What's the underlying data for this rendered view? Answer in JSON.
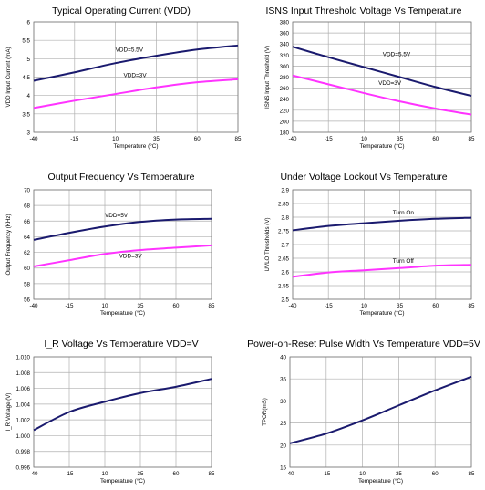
{
  "colors": {
    "navy": "#1a1a6e",
    "magenta": "#ff33ff",
    "grid": "#b0b0b0"
  },
  "chart_data": [
    {
      "type": "line",
      "title": "Typical Operating Current (VDD)",
      "xlabel": "Temperature (°C)",
      "ylabel": "VDD Input Current (mA)",
      "x": [
        -40,
        -15,
        10,
        35,
        60,
        85
      ],
      "ylim": [
        3,
        6
      ],
      "yticks": [
        3,
        3.5,
        4,
        4.5,
        5,
        5.5,
        6
      ],
      "ytick_labels": [
        "3",
        "3.5",
        "4",
        "4.5",
        "5",
        "5.5",
        "6"
      ],
      "grid": true,
      "series": [
        {
          "name": "VDD=5.5V",
          "values": [
            4.4,
            4.63,
            4.88,
            5.08,
            5.25,
            5.36
          ],
          "color": "#1a1a6e"
        },
        {
          "name": "VDD=3V",
          "values": [
            3.66,
            3.86,
            4.04,
            4.22,
            4.36,
            4.44
          ],
          "color": "#ff33ff"
        }
      ],
      "annotations": [
        {
          "text": "VDD=5.5V",
          "x": 10,
          "y": 5.2
        },
        {
          "text": "VDD=3V",
          "x": 15,
          "y": 4.5
        }
      ]
    },
    {
      "type": "line",
      "title": "ISNS Input Threshold Voltage Vs Temperature",
      "xlabel": "Temperature (°C)",
      "ylabel": "ISNS Input Threshold (V)",
      "x": [
        -40,
        -15,
        10,
        35,
        60,
        85
      ],
      "ylim": [
        180,
        380
      ],
      "yticks": [
        180,
        200,
        220,
        240,
        260,
        280,
        300,
        320,
        340,
        360,
        380
      ],
      "ytick_labels": [
        "180",
        "200",
        "220",
        "240",
        "260",
        "280",
        "300",
        "320",
        "340",
        "360",
        "380"
      ],
      "grid": true,
      "series": [
        {
          "name": "VDD=5.5V",
          "values": [
            335,
            316,
            298,
            280,
            262,
            246
          ],
          "color": "#1a1a6e"
        },
        {
          "name": "VDD=3V",
          "values": [
            283,
            267,
            251,
            236,
            223,
            212
          ],
          "color": "#ff33ff"
        }
      ],
      "annotations": [
        {
          "text": "VDD=5.5V",
          "x": 23,
          "y": 318
        },
        {
          "text": "VDD=3V",
          "x": 20,
          "y": 266
        }
      ]
    },
    {
      "type": "line",
      "title": "Output Frequency Vs Temperature",
      "xlabel": "Temperature (°C)",
      "ylabel": "Output Frequency (KHz)",
      "x": [
        -40,
        -15,
        10,
        35,
        60,
        85
      ],
      "ylim": [
        56,
        70
      ],
      "yticks": [
        56,
        58,
        60,
        62,
        64,
        66,
        68,
        70
      ],
      "ytick_labels": [
        "56",
        "58",
        "60",
        "62",
        "64",
        "66",
        "68",
        "70"
      ],
      "grid": true,
      "series": [
        {
          "name": "VDD=5V",
          "values": [
            63.6,
            64.5,
            65.3,
            65.9,
            66.2,
            66.3
          ],
          "color": "#1a1a6e"
        },
        {
          "name": "VDD=3V",
          "values": [
            60.2,
            61.0,
            61.8,
            62.3,
            62.6,
            62.9
          ],
          "color": "#ff33ff"
        }
      ],
      "annotations": [
        {
          "text": "VDD=5V",
          "x": 10,
          "y": 66.5
        },
        {
          "text": "VDD=3V",
          "x": 20,
          "y": 61.3
        }
      ]
    },
    {
      "type": "line",
      "title": "Under Voltage Lockout Vs Temperature",
      "xlabel": "Temperature (°C)",
      "ylabel": "UVLO Thresholds (V)",
      "x": [
        -40,
        -15,
        10,
        35,
        60,
        85
      ],
      "ylim": [
        2.5,
        2.9
      ],
      "yticks": [
        2.5,
        2.55,
        2.6,
        2.65,
        2.7,
        2.75,
        2.8,
        2.85,
        2.9
      ],
      "ytick_labels": [
        "2.5",
        "2.55",
        "2.6",
        "2.65",
        "2.7",
        "2.75",
        "2.8",
        "2.85",
        "2.9"
      ],
      "grid": true,
      "series": [
        {
          "name": "Turn On",
          "values": [
            2.752,
            2.768,
            2.778,
            2.787,
            2.794,
            2.798
          ],
          "color": "#1a1a6e"
        },
        {
          "name": "Turn Off",
          "values": [
            2.582,
            2.598,
            2.606,
            2.614,
            2.623,
            2.626
          ],
          "color": "#ff33ff"
        }
      ],
      "annotations": [
        {
          "text": "Turn On",
          "x": 30,
          "y": 2.81
        },
        {
          "text": "Turn Off",
          "x": 30,
          "y": 2.634
        }
      ]
    },
    {
      "type": "line",
      "title": "I_R Voltage Vs Temperature VDD=V",
      "xlabel": "Temperature (°C)",
      "ylabel": "I_R Voltage (V)",
      "x": [
        -40,
        -15,
        10,
        35,
        60,
        85
      ],
      "ylim": [
        0.996,
        1.01
      ],
      "yticks": [
        0.996,
        0.998,
        1.0,
        1.002,
        1.004,
        1.006,
        1.008,
        1.01
      ],
      "ytick_labels": [
        "0.996",
        "0.998",
        "1.000",
        "1.002",
        "1.004",
        "1.006",
        "1.008",
        "1.010"
      ],
      "grid": true,
      "series": [
        {
          "name": "",
          "values": [
            1.0007,
            1.003,
            1.0043,
            1.0054,
            1.0062,
            1.0072
          ],
          "color": "#1a1a6e"
        }
      ],
      "annotations": []
    },
    {
      "type": "line",
      "title": "Power-on-Reset Pulse Width Vs Temperature VDD=5V",
      "xlabel": "Temperature (°C)",
      "ylabel": "TPOR(mS)",
      "x": [
        -40,
        -15,
        10,
        35,
        60,
        85
      ],
      "ylim": [
        15,
        40
      ],
      "yticks": [
        15,
        20,
        25,
        30,
        35,
        40
      ],
      "ytick_labels": [
        "15",
        "20",
        "25",
        "30",
        "35",
        "40"
      ],
      "grid": true,
      "series": [
        {
          "name": "",
          "values": [
            20.4,
            22.6,
            25.6,
            29.0,
            32.4,
            35.5
          ],
          "color": "#1a1a6e"
        }
      ],
      "annotations": []
    }
  ]
}
